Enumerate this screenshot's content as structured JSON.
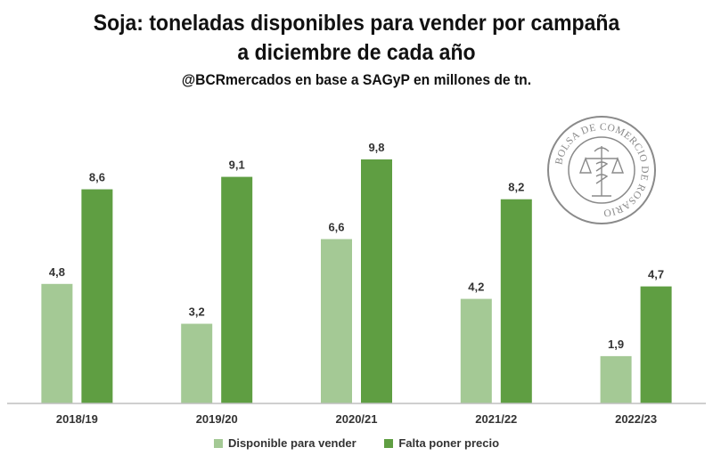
{
  "title_line1": "Soja: toneladas disponibles para vender por campaña",
  "title_line2": "a diciembre de cada año",
  "subtitle": "@BCRmercados en base a SAGyP en millones de tn.",
  "logo_text": "BOLSA DE COMERCIO DE ROSARIO",
  "colors": {
    "series1": "#a4c995",
    "series2": "#5f9e42",
    "axis": "#bfbfbf",
    "seal": "#8a8a8a"
  },
  "chart_data": {
    "type": "bar",
    "categories": [
      "2018/19",
      "2019/20",
      "2020/21",
      "2021/22",
      "2022/23"
    ],
    "series": [
      {
        "name": "Disponible para vender",
        "values": [
          4.8,
          3.2,
          6.6,
          4.2,
          1.9
        ],
        "labels": [
          "4,8",
          "3,2",
          "6,6",
          "4,2",
          "1,9"
        ]
      },
      {
        "name": "Falta poner precio",
        "values": [
          8.6,
          9.1,
          9.8,
          8.2,
          4.7
        ],
        "labels": [
          "8,6",
          "9,1",
          "9,8",
          "8,2",
          "4,7"
        ]
      }
    ],
    "ylim": [
      0,
      11
    ],
    "legend_position": "bottom"
  }
}
